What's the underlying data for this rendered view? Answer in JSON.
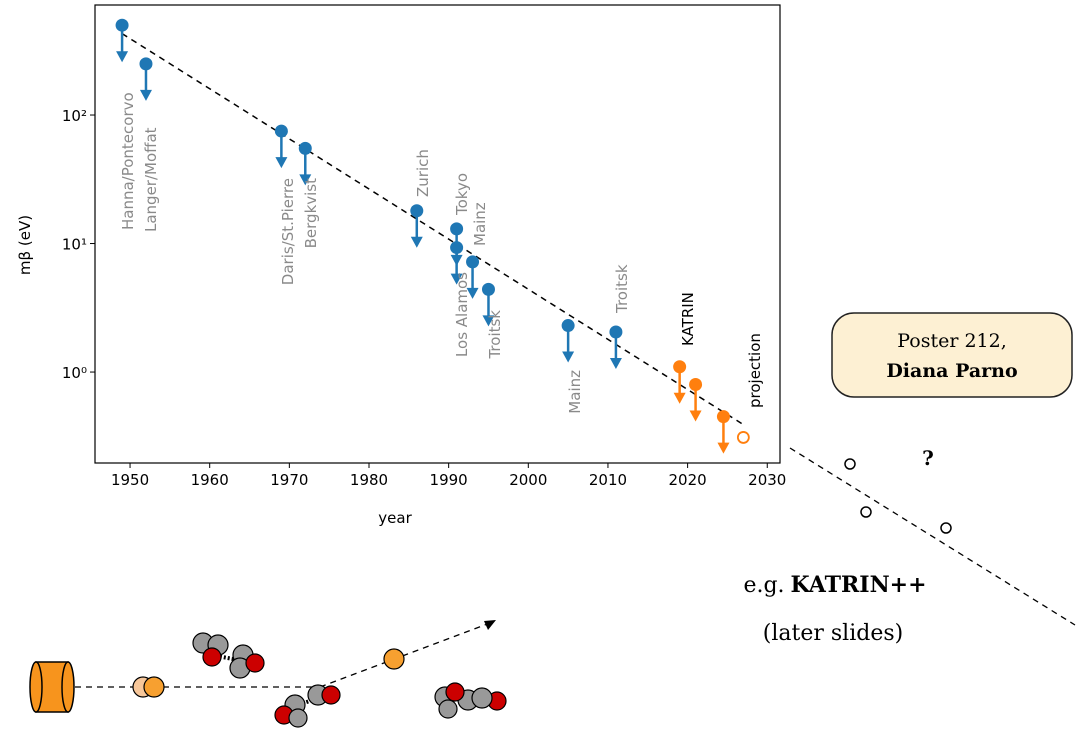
{
  "chart_data": {
    "type": "upper_limits",
    "xlabel": "year",
    "ylabel": "mβ (eV)",
    "xlim": [
      1945.6,
      2031.6
    ],
    "ylim": [
      0.196,
      718
    ],
    "log_y": true,
    "xticks": [
      1950,
      1960,
      1970,
      1980,
      1990,
      2000,
      2010,
      2020,
      2030
    ],
    "yticks": [
      {
        "value": 1,
        "label": "10⁰"
      },
      {
        "value": 10,
        "label": "10¹"
      },
      {
        "value": 100,
        "label": "10²"
      }
    ],
    "series": [
      {
        "color": "#1f77b4",
        "label_color": "#8a8a8a",
        "x": [
          1949,
          1952,
          1969,
          1972,
          1986,
          1991,
          1991,
          1993,
          1995,
          2005,
          2011
        ],
        "values": [
          500,
          250,
          75,
          55,
          18,
          13,
          9.3,
          7.2,
          4.4,
          2.3,
          2.05
        ],
        "labels": [
          "Hanna/Pontecorvo",
          "Langer/Moffat",
          "Daris/St.Pierre",
          "Bergkvist",
          "Zurich",
          "Tokyo",
          "Los Alamos",
          "Mainz",
          "Troitsk",
          "Mainz",
          "Troitsk"
        ]
      },
      {
        "color": "#ff7f0e",
        "label_color": "#000000",
        "x": [
          2019,
          2021,
          2024.5
        ],
        "values": [
          1.1,
          0.8,
          0.45
        ],
        "labels": [
          "KATRIN",
          null,
          null
        ]
      }
    ],
    "projection": {
      "x": 2027,
      "value": 0.31,
      "label": "projection",
      "color": "#ff7f0e"
    },
    "trend_line": {
      "x": [
        1949,
        2027
      ],
      "values": [
        430,
        0.39
      ]
    }
  },
  "annotations": {
    "poster": [
      "Poster 212,",
      "Diana Parno"
    ],
    "question": "?",
    "future": {
      "prefix": "e.g.",
      "name": "KATRIN++",
      "note": "(later slides)"
    }
  }
}
